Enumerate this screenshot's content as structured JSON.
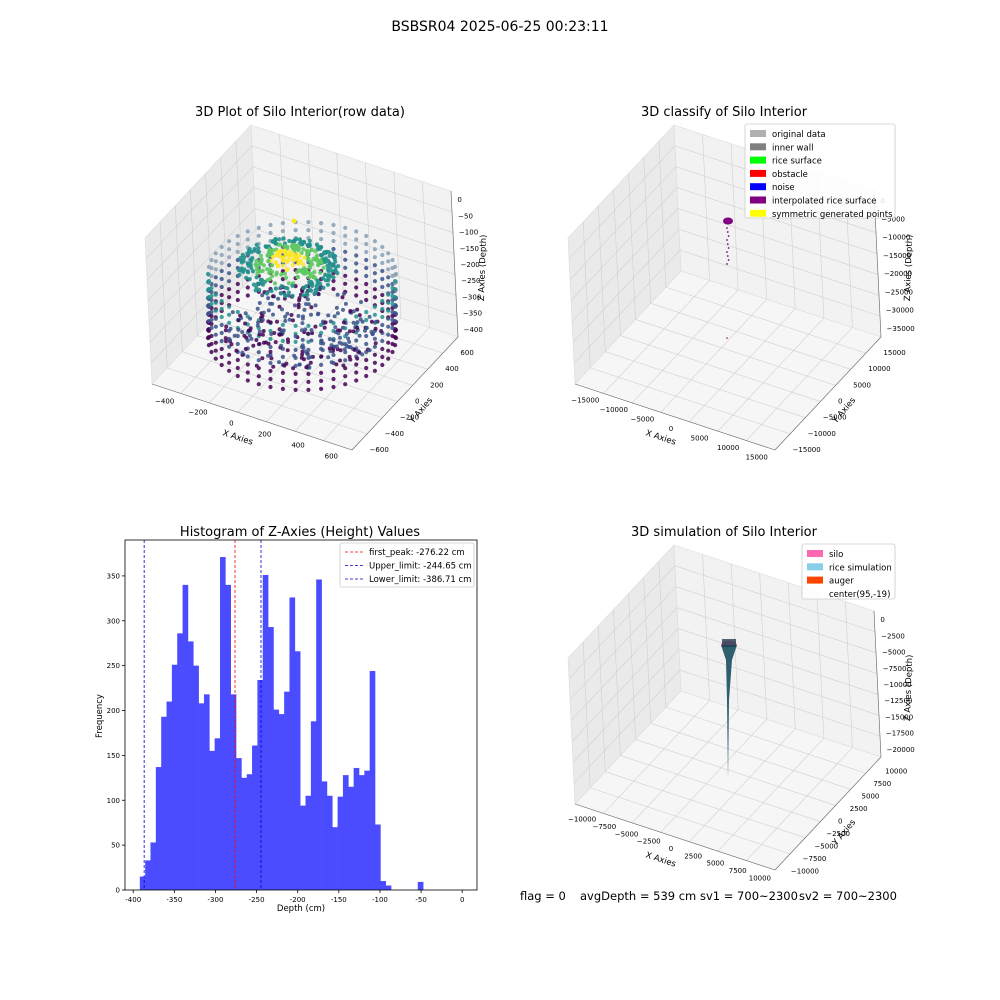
{
  "figure": {
    "suptitle": "BSBSR04 2025-06-25 00:23:11",
    "footer": {
      "flag": "flag = 0",
      "avg_depth": "avgDepth = 539 cm",
      "sv1": "sv1 = 700~2300",
      "sv2": "sv2 = 700~2300"
    }
  },
  "chart_data": [
    {
      "type": "scatter",
      "projection": "3d",
      "title": "3D Plot of Silo Interior(row data)",
      "xlabel": "X Axies",
      "ylabel": "Y Axies",
      "zlabel": "Z Axies (Depth)",
      "x_ticks": [
        "−400",
        "−200",
        "0",
        "200",
        "400",
        "600"
      ],
      "y_ticks": [
        "−600",
        "−400",
        "−200",
        "0",
        "200",
        "400",
        "600"
      ],
      "z_ticks": [
        "0",
        "−50",
        "−100",
        "−150",
        "−200",
        "−250",
        "−300",
        "−350",
        "−400"
      ],
      "xlim": [
        -500,
        700
      ],
      "ylim": [
        -650,
        650
      ],
      "zlim": [
        -420,
        10
      ],
      "colormap": "viridis",
      "colors": [
        "#440154",
        "#3b528b",
        "#21918c",
        "#5ec962",
        "#fde725"
      ],
      "description_points": "ring-shaped wall point cloud of the silo interior with a rice surface mound near the top"
    },
    {
      "type": "scatter",
      "projection": "3d",
      "title": "3D classify of Silo Interior",
      "xlabel": "X Axies",
      "ylabel": "Y Axies",
      "zlabel": "Z Axies (Depth)",
      "x_ticks": [
        "−15000",
        "−10000",
        "−5000",
        "0",
        "5000",
        "10000",
        "15000"
      ],
      "y_ticks": [
        "−15000",
        "−10000",
        "−5000",
        "0",
        "5000",
        "10000",
        "15000"
      ],
      "z_ticks": [
        "0",
        "−5000",
        "−10000",
        "−15000",
        "−20000",
        "−25000",
        "−30000",
        "−35000"
      ],
      "legend": [
        {
          "label": "original data",
          "color": "#b0b0b0"
        },
        {
          "label": "inner wall",
          "color": "#808080"
        },
        {
          "label": "rice surface",
          "color": "#00ff00"
        },
        {
          "label": "obstacle",
          "color": "#ff0000"
        },
        {
          "label": "noise",
          "color": "#0000ff"
        },
        {
          "label": "interpolated rice surface",
          "color": "#800080"
        },
        {
          "label": "symmetric generated points",
          "color": "#ffff00"
        }
      ]
    },
    {
      "type": "bar",
      "title": "Histogram of Z-Axies (Height) Values",
      "xlabel": "Depth (cm)",
      "ylabel": "Frequency",
      "xlim": [
        -410,
        18
      ],
      "ylim": [
        0,
        390
      ],
      "x_ticks": [
        -400,
        -350,
        -300,
        -250,
        -200,
        -150,
        -100,
        -50,
        0
      ],
      "y_ticks": [
        0,
        50,
        100,
        150,
        200,
        250,
        300,
        350
      ],
      "bar_color": "#4b4bff",
      "bin_start": -392,
      "bin_width": 6.5,
      "values": [
        15,
        33,
        53,
        137,
        193,
        210,
        251,
        286,
        340,
        277,
        250,
        208,
        218,
        155,
        169,
        371,
        340,
        218,
        147,
        125,
        129,
        161,
        234,
        351,
        293,
        201,
        196,
        221,
        326,
        266,
        94,
        105,
        188,
        346,
        121,
        105,
        70,
        104,
        128,
        115,
        136,
        128,
        133,
        244,
        73,
        10,
        5,
        0,
        0,
        0,
        0,
        0,
        9
      ],
      "lines": [
        {
          "label": "first_peak: -276.22 cm",
          "x": -276.22,
          "color": "#ff0000"
        },
        {
          "label": "Upper_limit: -244.65 cm",
          "x": -244.65,
          "color": "#0000cc"
        },
        {
          "label": "Lower_limit: -386.71 cm",
          "x": -386.71,
          "color": "#0000cc"
        }
      ],
      "legend_position": "top-right"
    },
    {
      "type": "scatter",
      "projection": "3d",
      "title": "3D simulation of Silo Interior",
      "xlabel": "X Axies",
      "ylabel": "Y Axies",
      "zlabel": "Z Axies (Depth)",
      "x_ticks": [
        "−10000",
        "−7500",
        "−5000",
        "−2500",
        "0",
        "2500",
        "5000",
        "7500",
        "10000"
      ],
      "y_ticks": [
        "−10000",
        "−7500",
        "−5000",
        "−2500",
        "0",
        "2500",
        "5000",
        "7500",
        "10000"
      ],
      "z_ticks": [
        "0",
        "−2500",
        "−5000",
        "−7500",
        "−10000",
        "−12500",
        "−15000",
        "−17500",
        "−20000"
      ],
      "legend": [
        {
          "label": "silo",
          "color": "#ff69b4"
        },
        {
          "label": "rice simulation",
          "color": "#87ceeb"
        },
        {
          "label": "auger",
          "color": "#ff4500"
        },
        {
          "label": "center(95,-19)",
          "color": "none"
        }
      ]
    }
  ]
}
